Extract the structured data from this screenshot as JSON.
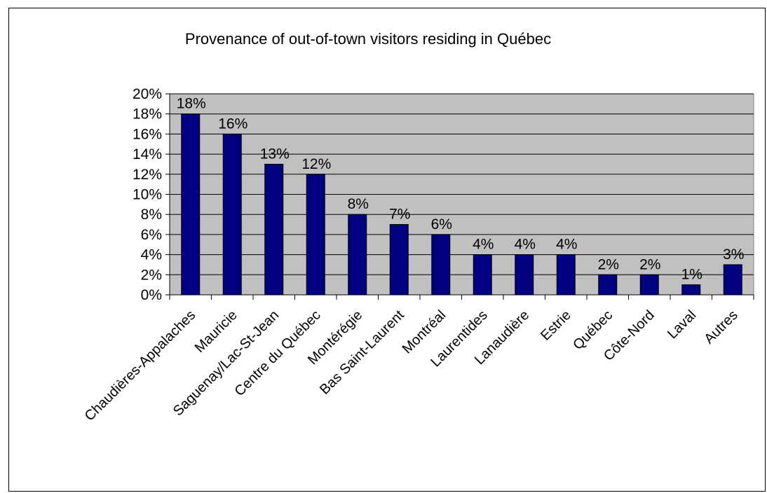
{
  "chart_data": {
    "type": "bar",
    "title": "Provenance of out-of-town visitors residing in Québec",
    "xlabel": "",
    "ylabel": "",
    "categories": [
      "Chaudières-Appalaches",
      "Mauricie",
      "Saguenay/Lac-St-Jean",
      "Centre du Québec",
      "Montérégie",
      "Bas Saint-Laurent",
      "Montréal",
      "Laurentides",
      "Lanaudière",
      "Estrie",
      "Québec",
      "Côte-Nord",
      "Laval",
      "Autres"
    ],
    "values": [
      18,
      16,
      13,
      12,
      8,
      7,
      6,
      4,
      4,
      4,
      2,
      2,
      1,
      3
    ],
    "data_labels": [
      "18%",
      "16%",
      "13%",
      "12%",
      "8%",
      "7%",
      "6%",
      "4%",
      "4%",
      "4%",
      "2%",
      "2%",
      "1%",
      "3%"
    ],
    "y_ticks": [
      "0%",
      "2%",
      "4%",
      "6%",
      "8%",
      "10%",
      "12%",
      "14%",
      "16%",
      "18%",
      "20%"
    ],
    "ylim": [
      0,
      20
    ],
    "grid": true,
    "legend": "none",
    "colors": {
      "bar": "#000080",
      "plot_background": "#c0c0c0",
      "grid": "#000000"
    }
  }
}
